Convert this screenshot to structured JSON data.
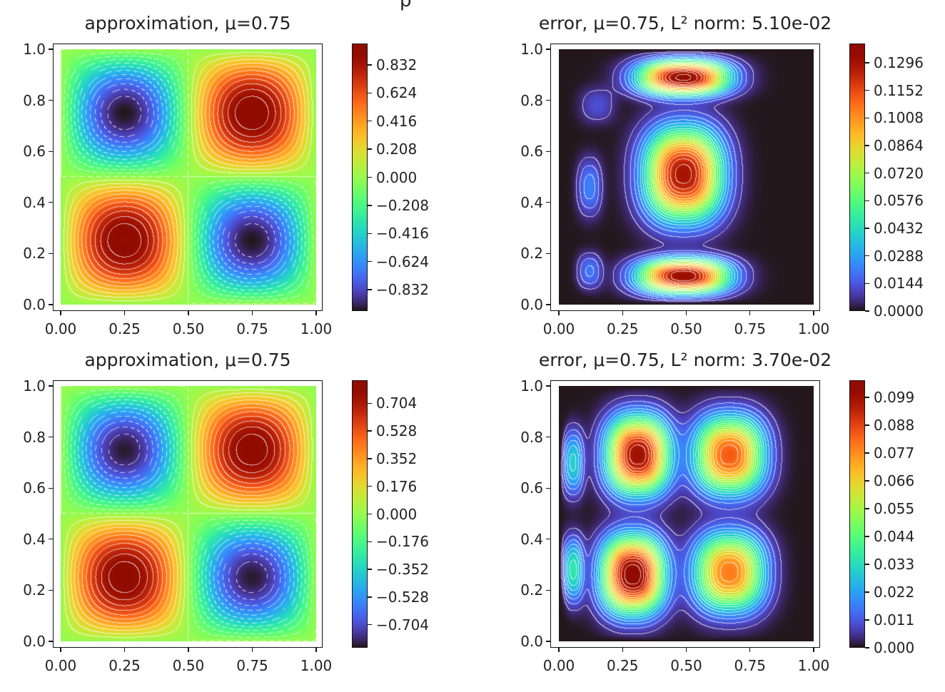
{
  "figure": {
    "suptitle_fragment": "p"
  },
  "chart_data": [
    {
      "type": "heatmap",
      "title": "approximation, μ=0.75",
      "field": "approximation",
      "xticks": [
        "0.00",
        "0.25",
        "0.50",
        "0.75",
        "1.00"
      ],
      "yticks": [
        "0.0",
        "0.2",
        "0.4",
        "0.6",
        "0.8",
        "1.0"
      ],
      "xlim": [
        0,
        1
      ],
      "ylim": [
        0,
        1
      ],
      "colorbar_ticks": [
        "0.832",
        "0.624",
        "0.416",
        "0.208",
        "0.000",
        "−0.208",
        "−0.416",
        "−0.624",
        "−0.832"
      ],
      "colorbar_values": [
        0.832,
        0.624,
        0.416,
        0.208,
        0,
        -0.208,
        -0.416,
        -0.624,
        -0.832
      ],
      "vmin": -0.99,
      "vmax": 0.99,
      "peak": 0.99,
      "extrema": [
        {
          "x": 0.25,
          "y": 0.75,
          "sign": -1
        },
        {
          "x": 0.75,
          "y": 0.75,
          "sign": 1
        },
        {
          "x": 0.25,
          "y": 0.25,
          "sign": 1
        },
        {
          "x": 0.75,
          "y": 0.25,
          "sign": -1
        }
      ],
      "colormap": "turbo"
    },
    {
      "type": "heatmap",
      "title": "error, μ=0.75, L² norm: 5.10e-02",
      "field": "error",
      "xticks": [
        "0.00",
        "0.25",
        "0.50",
        "0.75",
        "1.00"
      ],
      "yticks": [
        "0.0",
        "0.2",
        "0.4",
        "0.6",
        "0.8",
        "1.0"
      ],
      "xlim": [
        0,
        1
      ],
      "ylim": [
        0,
        1
      ],
      "colorbar_ticks": [
        "0.1296",
        "0.1152",
        "0.1008",
        "0.0864",
        "0.0720",
        "0.0576",
        "0.0432",
        "0.0288",
        "0.0144",
        "0.0000"
      ],
      "colorbar_values": [
        0.1296,
        0.1152,
        0.1008,
        0.0864,
        0.072,
        0.0576,
        0.0432,
        0.0288,
        0.0144,
        0
      ],
      "vmin": 0,
      "vmax": 0.1396,
      "blobs": [
        {
          "x": 0.49,
          "y": 0.89,
          "amp": 0.135,
          "sx": 0.13,
          "sy": 0.05
        },
        {
          "x": 0.49,
          "y": 0.51,
          "amp": 0.13,
          "sx": 0.11,
          "sy": 0.13
        },
        {
          "x": 0.49,
          "y": 0.11,
          "amp": 0.133,
          "sx": 0.13,
          "sy": 0.05
        },
        {
          "x": 0.12,
          "y": 0.46,
          "amp": 0.022,
          "sx": 0.035,
          "sy": 0.08
        },
        {
          "x": 0.12,
          "y": 0.13,
          "amp": 0.02,
          "sx": 0.035,
          "sy": 0.05
        },
        {
          "x": 0.15,
          "y": 0.78,
          "amp": 0.012,
          "sx": 0.05,
          "sy": 0.05
        }
      ],
      "colormap": "turbo"
    },
    {
      "type": "heatmap",
      "title": "approximation, μ=0.75",
      "field": "approximation",
      "xticks": [
        "0.00",
        "0.25",
        "0.50",
        "0.75",
        "1.00"
      ],
      "yticks": [
        "0.0",
        "0.2",
        "0.4",
        "0.6",
        "0.8",
        "1.0"
      ],
      "xlim": [
        0,
        1
      ],
      "ylim": [
        0,
        1
      ],
      "colorbar_ticks": [
        "0.704",
        "0.528",
        "0.352",
        "0.176",
        "0.000",
        "−0.176",
        "−0.352",
        "−0.528",
        "−0.704"
      ],
      "colorbar_values": [
        0.704,
        0.528,
        0.352,
        0.176,
        0,
        -0.176,
        -0.352,
        -0.528,
        -0.704
      ],
      "vmin": -0.85,
      "vmax": 0.85,
      "peak": 0.84,
      "extrema": [
        {
          "x": 0.25,
          "y": 0.75,
          "sign": -1
        },
        {
          "x": 0.75,
          "y": 0.75,
          "sign": 1
        },
        {
          "x": 0.25,
          "y": 0.25,
          "sign": 1
        },
        {
          "x": 0.75,
          "y": 0.25,
          "sign": -1
        }
      ],
      "colormap": "turbo"
    },
    {
      "type": "heatmap",
      "title": "error, μ=0.75, L² norm: 3.70e-02",
      "field": "error",
      "xticks": [
        "0.00",
        "0.25",
        "0.50",
        "0.75",
        "1.00"
      ],
      "yticks": [
        "0.0",
        "0.2",
        "0.4",
        "0.6",
        "0.8",
        "1.0"
      ],
      "xlim": [
        0,
        1
      ],
      "ylim": [
        0,
        1
      ],
      "colorbar_ticks": [
        "0.099",
        "0.088",
        "0.077",
        "0.066",
        "0.055",
        "0.044",
        "0.033",
        "0.022",
        "0.011",
        "0.000"
      ],
      "colorbar_values": [
        0.099,
        0.088,
        0.077,
        0.066,
        0.055,
        0.044,
        0.033,
        0.022,
        0.011,
        0
      ],
      "vmin": 0,
      "vmax": 0.1058,
      "blobs": [
        {
          "x": 0.31,
          "y": 0.73,
          "amp": 0.1,
          "sx": 0.09,
          "sy": 0.11
        },
        {
          "x": 0.67,
          "y": 0.73,
          "amp": 0.085,
          "sx": 0.1,
          "sy": 0.11
        },
        {
          "x": 0.29,
          "y": 0.26,
          "amp": 0.105,
          "sx": 0.09,
          "sy": 0.11
        },
        {
          "x": 0.67,
          "y": 0.27,
          "amp": 0.08,
          "sx": 0.1,
          "sy": 0.11
        },
        {
          "x": 0.055,
          "y": 0.7,
          "amp": 0.03,
          "sx": 0.03,
          "sy": 0.09
        },
        {
          "x": 0.055,
          "y": 0.28,
          "amp": 0.035,
          "sx": 0.03,
          "sy": 0.09
        }
      ],
      "colormap": "turbo"
    }
  ]
}
